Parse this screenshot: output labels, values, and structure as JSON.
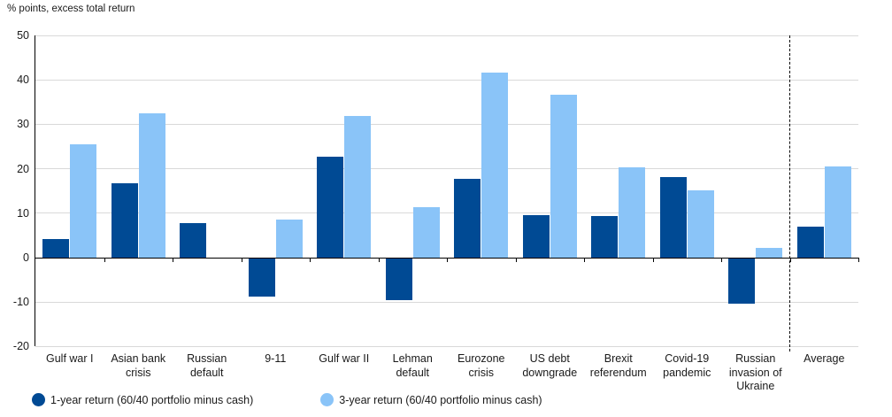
{
  "title": "% points, excess total return",
  "colors": {
    "series1": "#004a94",
    "series2": "#8ac4f8",
    "gridline": "#d9d9d9",
    "axis": "#000000",
    "text": "#1a1a1a"
  },
  "legend": [
    {
      "label": "1-year return (60/40 portfolio minus cash)",
      "swatch": "series1"
    },
    {
      "label": "3-year return (60/40 portfolio minus cash)",
      "swatch": "series2"
    }
  ],
  "chart_data": {
    "type": "bar",
    "title": "% points, excess total return",
    "categories": [
      "Gulf war I",
      "Asian bank crisis",
      "Russian default",
      "9-11",
      "Gulf war II",
      "Lehman default",
      "Eurozone crisis",
      "US debt downgrade",
      "Brexit referendum",
      "Covid-19 pandemic",
      "Russian invasion of Ukraine",
      "Average"
    ],
    "series": [
      {
        "name": "1-year return (60/40 portfolio minus cash)",
        "values": [
          4.1,
          16.7,
          7.8,
          -8.6,
          22.7,
          -9.3,
          17.7,
          9.5,
          9.3,
          18.1,
          -10.2,
          7.0
        ]
      },
      {
        "name": "3-year return (60/40 portfolio minus cash)",
        "values": [
          25.5,
          32.5,
          null,
          8.5,
          31.8,
          11.3,
          41.7,
          36.7,
          20.3,
          15.2,
          2.2,
          20.5
        ]
      }
    ],
    "ylim": [
      -20,
      50
    ],
    "yticks": [
      50,
      40,
      30,
      20,
      10,
      0,
      -10,
      -20
    ],
    "grid": true,
    "legend_position": "bottom",
    "separator_before_category": "Average"
  }
}
